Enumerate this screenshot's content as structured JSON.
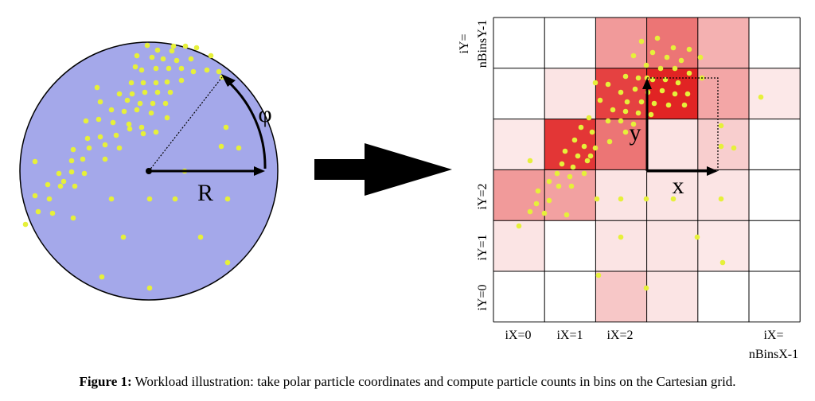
{
  "polar": {
    "radius_label": "R",
    "angle_label": "φ"
  },
  "grid": {
    "x_label": "x",
    "y_label": "y",
    "col_labels": [
      "iX=0",
      "iX=1",
      "iX=2"
    ],
    "col_last_label": [
      "iX=",
      "nBinsX-1"
    ],
    "row_labels": [
      "iY=0",
      "iY=1",
      "iY=2"
    ],
    "row_last_label": [
      "iY=",
      "nBinsY-1"
    ]
  },
  "caption": {
    "label": "Figure 1:",
    "text": " Workload illustration: take polar particle coordinates and compute particle counts in bins on the Cartesian grid."
  },
  "colors": {
    "disc_fill": "#a4a8ea",
    "particle": "#e6f03a",
    "heat_base": "#e02020"
  }
}
